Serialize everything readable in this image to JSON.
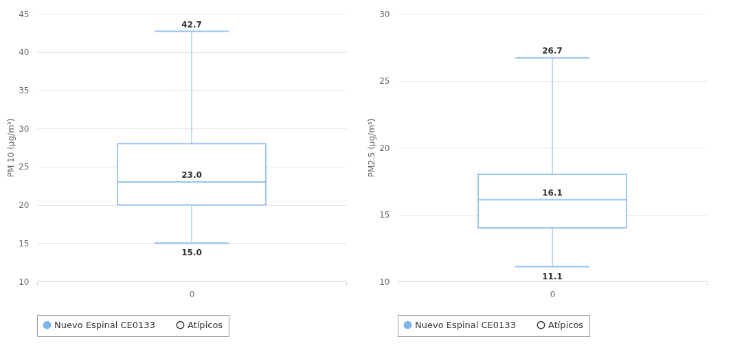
{
  "chart_data": [
    {
      "type": "box",
      "ylabel": "PM 10 (µg/m³)",
      "categories": [
        "0"
      ],
      "ylim": [
        10,
        45
      ],
      "yticks": [
        10,
        15,
        20,
        25,
        30,
        35,
        40,
        45
      ],
      "grid": "y",
      "legend": "bottom",
      "series": [
        {
          "name": "Nuevo Espinal CE0133",
          "color": "#7cb5ec",
          "boxes": [
            {
              "low": 15.0,
              "q1": 20,
              "median": 23.0,
              "q3": 28,
              "high": 42.7
            }
          ]
        },
        {
          "name": "Atípicos",
          "type": "scatter",
          "color": "#333333",
          "marker": "circle",
          "values": [
            null
          ]
        }
      ],
      "annotations": [
        {
          "text": "42.7",
          "x": "0",
          "y": 42.7
        },
        {
          "text": "23.0",
          "x": "0",
          "y": 23.0
        },
        {
          "text": "15.0",
          "x": "0",
          "y": 15.0
        }
      ]
    },
    {
      "type": "box",
      "ylabel": "PM2.5 (µg/m³)",
      "categories": [
        "0"
      ],
      "ylim": [
        10,
        30
      ],
      "yticks": [
        10,
        15,
        20,
        25,
        30
      ],
      "grid": "y",
      "legend": "bottom",
      "series": [
        {
          "name": "Nuevo Espinal CE0133",
          "color": "#7cb5ec",
          "boxes": [
            {
              "low": 11.1,
              "q1": 14,
              "median": 16.1,
              "q3": 18,
              "high": 26.7
            }
          ]
        },
        {
          "name": "Atípicos",
          "type": "scatter",
          "color": "#333333",
          "marker": "circle",
          "values": [
            null
          ]
        }
      ],
      "annotations": [
        {
          "text": "26.7",
          "x": "0",
          "y": 26.7
        },
        {
          "text": "16.1",
          "x": "0",
          "y": 16.1
        },
        {
          "text": "11.1",
          "x": "0",
          "y": 11.1
        }
      ]
    }
  ]
}
